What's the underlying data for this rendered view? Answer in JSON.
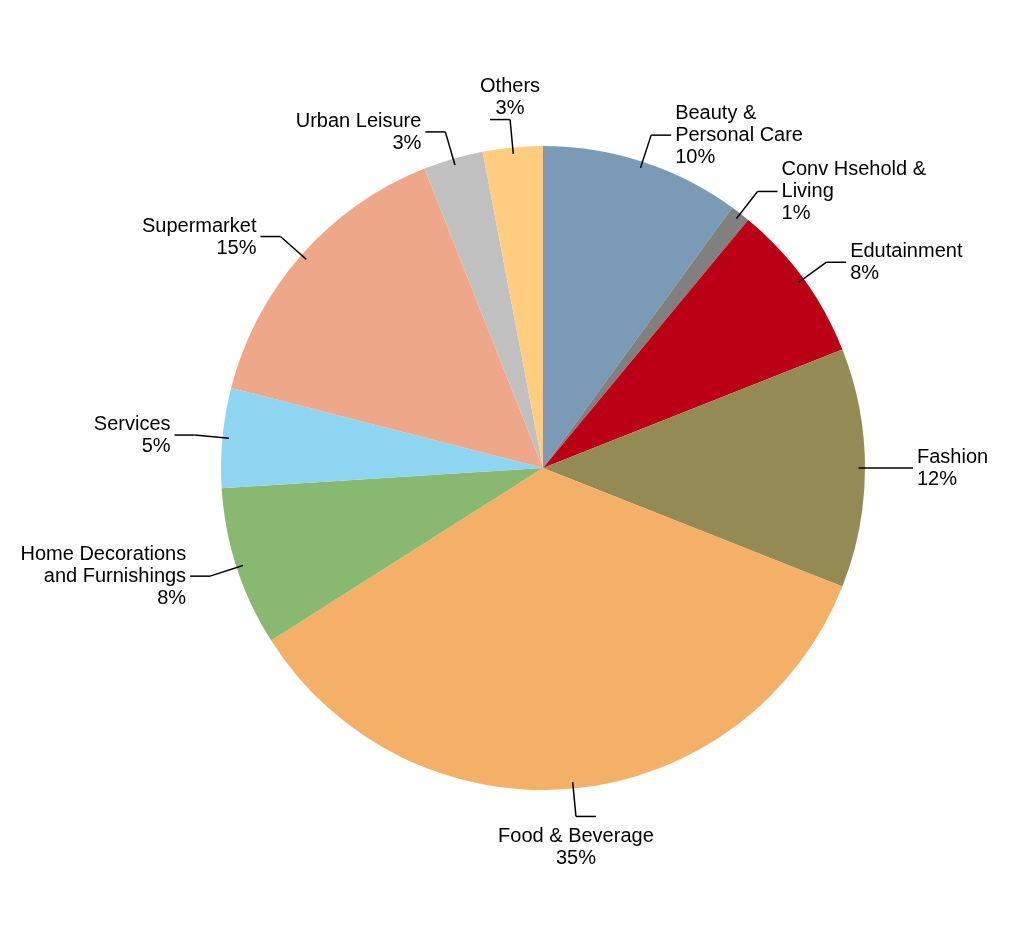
{
  "chart_data": {
    "type": "pie",
    "categories": [
      "Beauty & Personal Care",
      "Conv Hsehold & Living",
      "Edutainment",
      "Fashion",
      "Food & Beverage",
      "Home Decorations and Furnishings",
      "Services",
      "Supermarket",
      "Urban Leisure",
      "Others"
    ],
    "values": [
      10,
      1,
      8,
      12,
      35,
      8,
      5,
      15,
      3,
      3
    ],
    "value_labels": [
      "10%",
      "1%",
      "8%",
      "12%",
      "35%",
      "8%",
      "5%",
      "15%",
      "3%",
      "3%"
    ],
    "colors": [
      "#7a9ab5",
      "#808080",
      "#bb0015",
      "#948a54",
      "#f4b066",
      "#89b971",
      "#8dd5f1",
      "#efa78a",
      "#c0c0c0",
      "#ffcc80"
    ],
    "legend": false
  }
}
